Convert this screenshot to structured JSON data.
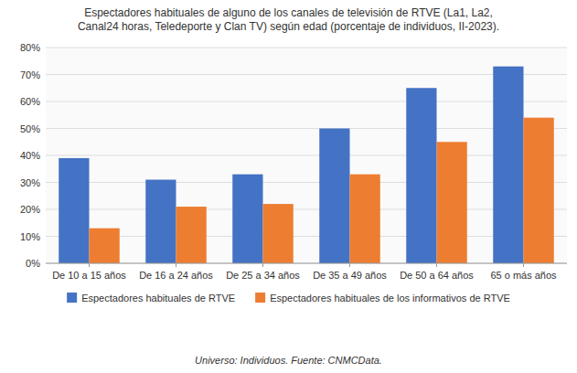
{
  "chart_data": {
    "type": "bar",
    "title": "Espectadores habituales de alguno de los canales de televisión de RTVE (La1, La2,\nCanal24 horas, Teledeporte y Clan TV) según edad (porcentaje de individuos, II-2023).",
    "categories": [
      "De 10 a 15 años",
      "De 16 a 24 años",
      "De 25 a 34 años",
      "De 35 a 49 años",
      "De 50 a 64 años",
      "65 o más años"
    ],
    "series": [
      {
        "name": "Espectadores habituales de RTVE",
        "color": "#4472C4",
        "values": [
          39,
          31,
          33,
          50,
          65,
          73
        ]
      },
      {
        "name": "Espectadores habituales de los informativos de RTVE",
        "color": "#ED7D31",
        "values": [
          13,
          21,
          22,
          33,
          45,
          54
        ]
      }
    ],
    "ylim": [
      0,
      80
    ],
    "yticks": [
      {
        "value": 0,
        "label": "0%"
      },
      {
        "value": 10,
        "label": "10%"
      },
      {
        "value": 20,
        "label": "20%"
      },
      {
        "value": 30,
        "label": "30%"
      },
      {
        "value": 40,
        "label": "40%"
      },
      {
        "value": 50,
        "label": "50%"
      },
      {
        "value": 60,
        "label": "60%"
      },
      {
        "value": 70,
        "label": "70%"
      },
      {
        "value": 80,
        "label": "80%"
      }
    ],
    "grid": true,
    "legend": "bottom",
    "annotations": [
      "Universo: Individuos. Fuente: CNMCData."
    ]
  }
}
